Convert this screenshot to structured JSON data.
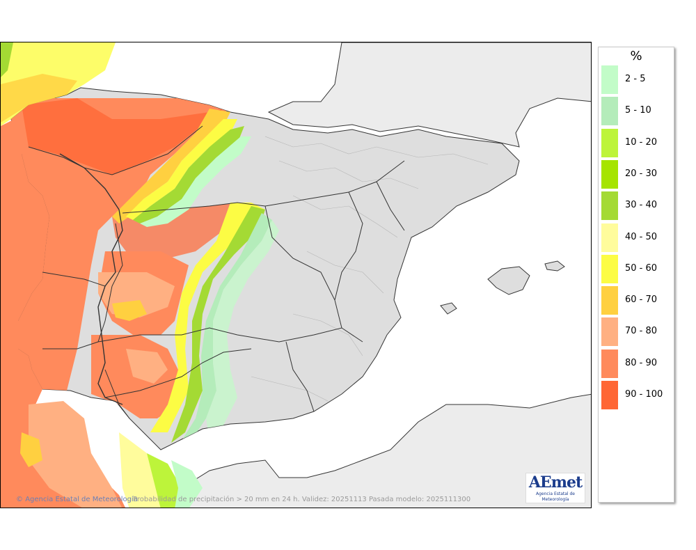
{
  "map": {
    "credit_agency": "Agencia Estatal de Meteorología",
    "caption": "Probabilidad de precipitación > 20 mm en 24 h. Validez: 20251113 Pasada modelo: 2025111300",
    "logo_text": "AEmet",
    "logo_subtext": "Agencia Estatal de Meteorología",
    "colors": {
      "sea": "#ffffff",
      "land": "#dedede",
      "foreign_land": "#ececec",
      "border": "#333333"
    }
  },
  "legend": {
    "unit": "%",
    "items": [
      {
        "label": "2 - 5",
        "color": "#c2fcc8"
      },
      {
        "label": "5 - 10",
        "color": "#b4ecba"
      },
      {
        "label": "10 - 20",
        "color": "#bdf43a"
      },
      {
        "label": "20 - 30",
        "color": "#a6e400"
      },
      {
        "label": "30 - 40",
        "color": "#a4da34"
      },
      {
        "label": "40 - 50",
        "color": "#fffc9c"
      },
      {
        "label": "50 - 60",
        "color": "#fcfc44"
      },
      {
        "label": "60 - 70",
        "color": "#ffd040"
      },
      {
        "label": "70 - 80",
        "color": "#ffb082"
      },
      {
        "label": "80 - 90",
        "color": "#ff8a5c"
      },
      {
        "label": "90 - 100",
        "color": "#ff6634"
      }
    ]
  }
}
